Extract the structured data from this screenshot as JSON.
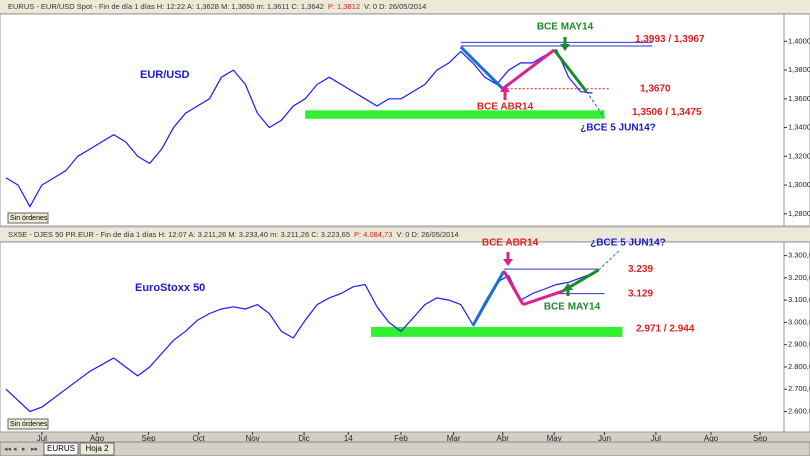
{
  "ui": {
    "tabs": [
      "EURUS",
      "Hoja 2"
    ],
    "button": "Sin órdenes"
  },
  "chart_data": [
    {
      "type": "line",
      "header": "EURUS - EUR/USD Spot - Fin de día 1 días  H: 12:22  A: 1,3628  M: 1,3650  m: 1,3611  C: 1,3642",
      "header_p": "P: 1,3812",
      "header_d": "V: 0  D: 26/05/2014",
      "title": "EUR/USD",
      "x": [
        -3,
        -2,
        -1,
        0,
        1,
        2,
        3,
        4,
        5,
        6,
        7,
        8,
        9,
        10,
        11,
        12,
        13,
        14,
        15,
        16,
        17,
        18,
        19,
        20,
        21,
        22,
        23,
        24,
        25,
        26,
        27,
        28,
        29,
        30,
        31,
        32,
        33,
        34,
        35,
        36,
        37,
        38,
        39,
        40,
        41,
        42,
        43,
        44,
        45,
        46
      ],
      "series": [
        {
          "name": "EUR/USD",
          "color": "#1a1aff",
          "values": [
            1.305,
            1.3,
            1.285,
            1.3,
            1.305,
            1.31,
            1.32,
            1.325,
            1.33,
            1.335,
            1.33,
            1.32,
            1.315,
            1.325,
            1.34,
            1.35,
            1.355,
            1.36,
            1.375,
            1.38,
            1.37,
            1.35,
            1.34,
            1.345,
            1.355,
            1.36,
            1.37,
            1.375,
            1.37,
            1.365,
            1.36,
            1.355,
            1.36,
            1.36,
            1.365,
            1.37,
            1.38,
            1.385,
            1.393,
            1.385,
            1.375,
            1.37,
            1.38,
            1.385,
            1.385,
            1.39,
            1.394,
            1.375,
            1.365,
            1.364
          ]
        }
      ],
      "xlim": [
        -3,
        62
      ],
      "ylim": [
        1.2715,
        1.419
      ],
      "yticks": [
        {
          "value": 1.28,
          "label": "1,2800"
        },
        {
          "value": 1.3,
          "label": "1,3000"
        },
        {
          "value": 1.32,
          "label": "1,3200"
        },
        {
          "value": 1.34,
          "label": "1,3400"
        },
        {
          "value": 1.36,
          "label": "1,3600"
        },
        {
          "value": 1.38,
          "label": "1,3800"
        },
        {
          "value": 1.4,
          "label": "1,4000"
        }
      ],
      "levels": [
        {
          "label": "1,3993 / 1,3967",
          "values": [
            1.3993,
            1.3967
          ],
          "color": "#3333cc",
          "style": "double"
        },
        {
          "label": "1,3670",
          "values": [
            1.367
          ],
          "color": "#e02020",
          "style": "dashed"
        },
        {
          "label": "1,3506 / 1,3475",
          "values": [
            1.3506,
            1.3475
          ],
          "color": "#33ee33",
          "style": "band"
        }
      ],
      "segments": [
        {
          "color": "#1e6fd0",
          "x": [
            35,
            38.5
          ],
          "y": [
            1.396,
            1.367
          ]
        },
        {
          "color": "#e0208a",
          "x": [
            38.5,
            42.8
          ],
          "y": [
            1.367,
            1.394
          ]
        },
        {
          "color": "#1c8a2a",
          "x": [
            42.8,
            45.5
          ],
          "y": [
            1.394,
            1.365
          ]
        },
        {
          "color": "#1e6fd0",
          "x": [
            45.5,
            47
          ],
          "y": [
            1.365,
            1.347
          ],
          "dashed": true
        }
      ],
      "annotations": [
        {
          "text": "BCE MAY14",
          "color": "#1c8a2a"
        },
        {
          "text": "BCE ABR14",
          "color": "#e02020"
        },
        {
          "text": "¿BCE 5 JUN14?",
          "color": "#1a1acc"
        }
      ]
    },
    {
      "type": "line",
      "header": "SX5E - DJES 50 PR.EUR - Fin de día 1 días  H: 12:07  A: 3.211,26  M: 3.233,40  m: 3.211,26  C: 3.223,65",
      "header_p": "P: 4.084,73",
      "header_d": "V: 0  D: 26/05/2014",
      "title": "EuroStoxx 50",
      "x": [
        -3,
        -2,
        -1,
        0,
        1,
        2,
        3,
        4,
        5,
        6,
        7,
        8,
        9,
        10,
        11,
        12,
        13,
        14,
        15,
        16,
        17,
        18,
        19,
        20,
        21,
        22,
        23,
        24,
        25,
        26,
        27,
        28,
        29,
        30,
        31,
        32,
        33,
        34,
        35,
        36,
        37,
        38,
        39,
        40,
        41,
        42,
        43,
        44,
        45,
        46
      ],
      "series": [
        {
          "name": "EuroStoxx 50",
          "color": "#1a1aff",
          "values": [
            2700,
            2650,
            2600,
            2620,
            2660,
            2700,
            2740,
            2780,
            2810,
            2840,
            2800,
            2760,
            2800,
            2860,
            2920,
            2960,
            3010,
            3040,
            3060,
            3070,
            3060,
            3080,
            3040,
            2960,
            2930,
            3010,
            3080,
            3110,
            3130,
            3160,
            3170,
            3070,
            3000,
            2960,
            3020,
            3080,
            3110,
            3100,
            3080,
            2990,
            3090,
            3180,
            3210,
            3100,
            3130,
            3150,
            3170,
            3180,
            3200,
            3220
          ]
        }
      ],
      "xlim": [
        -3,
        62
      ],
      "ylim": [
        2508,
        3361
      ],
      "xticks": [
        {
          "value": 0,
          "label": "Jul"
        },
        {
          "value": 4.6,
          "label": "Ago"
        },
        {
          "value": 8.9,
          "label": "Sep"
        },
        {
          "value": 13.1,
          "label": "Oct"
        },
        {
          "value": 17.6,
          "label": "Nov"
        },
        {
          "value": 21.9,
          "label": "Dic"
        },
        {
          "value": 25.6,
          "label": "14"
        },
        {
          "value": 30,
          "label": "Feb"
        },
        {
          "value": 34.4,
          "label": "Mar"
        },
        {
          "value": 38.5,
          "label": "Abr"
        },
        {
          "value": 42.8,
          "label": "May"
        },
        {
          "value": 47,
          "label": "Jun"
        },
        {
          "value": 51.3,
          "label": "Jul"
        },
        {
          "value": 55.9,
          "label": "Ago"
        },
        {
          "value": 60,
          "label": "Sep"
        }
      ],
      "yticks": [
        {
          "value": 2600,
          "label": "2.600,00"
        },
        {
          "value": 2700,
          "label": "2.700,00"
        },
        {
          "value": 2800,
          "label": "2.800,00"
        },
        {
          "value": 2900,
          "label": "2.900,00"
        },
        {
          "value": 3000,
          "label": "3.000,00"
        },
        {
          "value": 3100,
          "label": "3.100,00"
        },
        {
          "value": 3200,
          "label": "3.200,00"
        },
        {
          "value": 3300,
          "label": "3.300,00"
        }
      ],
      "levels": [
        {
          "label": "3.239",
          "values": [
            3239
          ],
          "color": "#3333cc",
          "style": "line"
        },
        {
          "label": "3.129",
          "values": [
            3129
          ],
          "color": "#3333cc",
          "style": "line"
        },
        {
          "label": "2.971 / 2.944",
          "values": [
            2971,
            2944
          ],
          "color": "#33ee33",
          "style": "band"
        }
      ],
      "segments": [
        {
          "color": "#1e6fd0",
          "x": [
            36,
            38.6
          ],
          "y": [
            2985,
            3230
          ]
        },
        {
          "color": "#e0208a",
          "x": [
            38.6,
            40.2
          ],
          "y": [
            3230,
            3080
          ]
        },
        {
          "color": "#e0208a",
          "x": [
            40.2,
            43.5
          ],
          "y": [
            3080,
            3140
          ]
        },
        {
          "color": "#1c8a2a",
          "x": [
            43.5,
            46.5
          ],
          "y": [
            3140,
            3235
          ]
        },
        {
          "color": "#1e6fd0",
          "x": [
            46.5,
            48.2
          ],
          "y": [
            3235,
            3320
          ],
          "dashed": true
        }
      ],
      "annotations": [
        {
          "text": "BCE ABR14",
          "color": "#e02020"
        },
        {
          "text": "¿BCE 5 JUN14?",
          "color": "#1a1acc"
        },
        {
          "text": "BCE MAY14",
          "color": "#1c8a2a"
        }
      ]
    }
  ]
}
